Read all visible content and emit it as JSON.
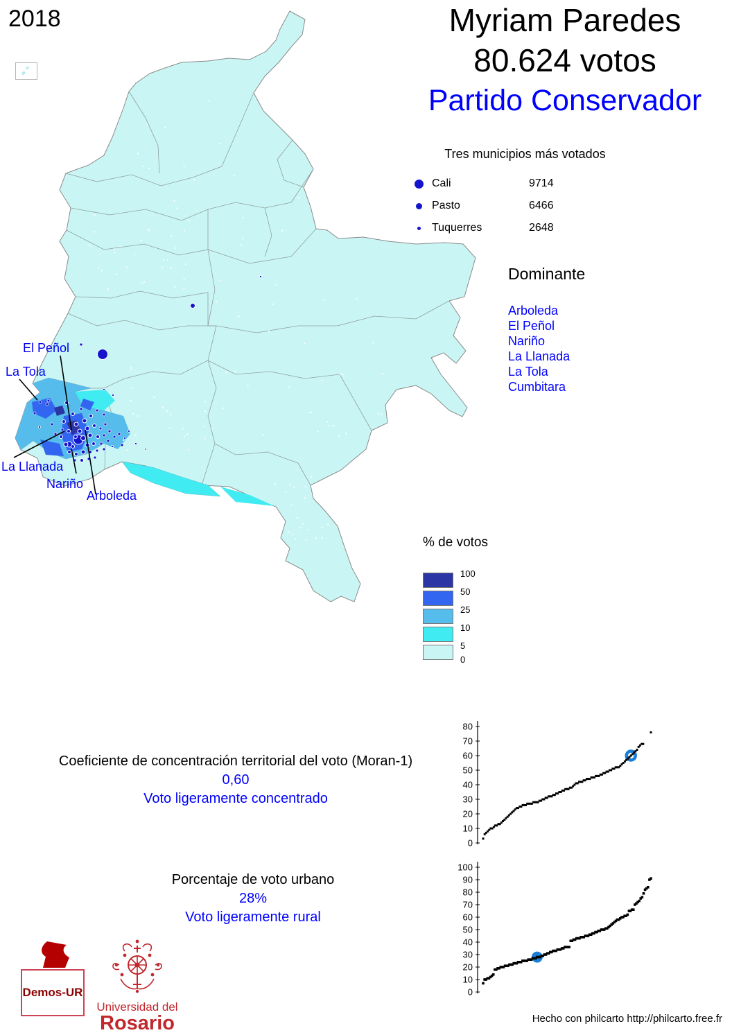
{
  "year": "2018",
  "header": {
    "name": "Myriam Paredes",
    "votes": "80.624 votos",
    "party": "Partido Conservador"
  },
  "colors": {
    "party_text_blue": "#0000ff",
    "dot_navy": "#1414cc",
    "highlight_blue": "#1b7fd6",
    "map_base": "#c9f6f4",
    "map_border": "#8a8a8a",
    "class_colors": [
      "#2b35a4",
      "#3366f0",
      "#56bcec",
      "#40ecf2",
      "#c9f6f4"
    ],
    "logo_red": "#c1272d"
  },
  "top_municipalities": {
    "title": "Tres municipios más votados",
    "rows": [
      {
        "name": "Cali",
        "value": "9714"
      },
      {
        "name": "Pasto",
        "value": "6466"
      },
      {
        "name": "Tuquerres",
        "value": "2648"
      }
    ]
  },
  "dominante": {
    "title": "Dominante",
    "items": [
      "Arboleda",
      "El Peñol",
      "Nariño",
      "La Llanada",
      "La Tola",
      "Cumbitara"
    ]
  },
  "map": {
    "callouts": [
      {
        "text": "El Peñol"
      },
      {
        "text": "La Tola"
      },
      {
        "text": "La Llanada"
      },
      {
        "text": "Nariño"
      },
      {
        "text": "Arboleda"
      }
    ]
  },
  "votes_legend": {
    "title": "% de votos",
    "breaks": [
      "100",
      "50",
      "25",
      "10",
      "5",
      "0"
    ]
  },
  "moran": {
    "title": "Coeficiente de concentración territorial del voto (Moran-1)",
    "value": "0,60",
    "label": "Voto ligeramente concentrado"
  },
  "urban": {
    "title": "Porcentaje de voto urbano",
    "value": "28%",
    "label": "Voto ligeramente rural"
  },
  "logos": {
    "demos": "Demos-UR",
    "university_line1": "Universidad del",
    "university_line2": "Rosario"
  },
  "credit": "Hecho con philcarto http://philcarto.free.fr",
  "chart_data": [
    {
      "type": "scatter",
      "title": "",
      "xlabel": "",
      "ylabel": "",
      "ylim": [
        0,
        80
      ],
      "ytick": 10,
      "legend_position": "none",
      "grid": false,
      "highlight_value": 60,
      "highlight_style": "ring",
      "gap_before_last": true,
      "values": [
        3,
        6,
        7,
        8,
        9,
        10,
        10,
        11,
        12,
        12,
        13,
        13,
        14,
        15,
        16,
        17,
        18,
        19,
        20,
        21,
        22,
        23,
        24,
        24,
        25,
        25,
        26,
        26,
        26,
        27,
        27,
        27,
        27,
        28,
        28,
        28,
        28,
        29,
        29,
        30,
        30,
        31,
        31,
        32,
        32,
        32,
        33,
        33,
        34,
        34,
        35,
        35,
        36,
        36,
        37,
        37,
        37,
        38,
        38,
        39,
        40,
        41,
        41,
        42,
        42,
        42,
        43,
        43,
        44,
        44,
        44,
        45,
        45,
        45,
        46,
        46,
        46,
        47,
        47,
        48,
        48,
        49,
        49,
        50,
        50,
        51,
        51,
        52,
        52,
        52,
        53,
        54,
        55,
        56,
        57,
        58,
        59,
        60,
        61,
        62,
        63,
        64,
        66,
        67,
        68,
        68,
        76
      ]
    },
    {
      "type": "scatter",
      "title": "",
      "xlabel": "",
      "ylabel": "",
      "ylim": [
        0,
        100
      ],
      "ytick": 10,
      "legend_position": "none",
      "grid": false,
      "highlight_value": 28,
      "highlight_style": "solid",
      "gap_before_last": false,
      "values": [
        7,
        10,
        10,
        11,
        11,
        12,
        13,
        14,
        18,
        18,
        19,
        19,
        20,
        20,
        20,
        21,
        21,
        21,
        22,
        22,
        22,
        23,
        23,
        23,
        24,
        24,
        24,
        25,
        25,
        25,
        25,
        26,
        26,
        26,
        27,
        27,
        27,
        28,
        28,
        28,
        29,
        29,
        30,
        30,
        31,
        31,
        32,
        32,
        33,
        33,
        33,
        34,
        34,
        34,
        35,
        35,
        36,
        36,
        36,
        36,
        41,
        41,
        42,
        42,
        43,
        43,
        43,
        44,
        44,
        44,
        45,
        45,
        45,
        46,
        46,
        47,
        47,
        48,
        48,
        49,
        49,
        50,
        50,
        50,
        51,
        51,
        52,
        53,
        54,
        55,
        56,
        57,
        58,
        58,
        59,
        60,
        60,
        61,
        61,
        62,
        65,
        65,
        66,
        66,
        70,
        71,
        72,
        73,
        75,
        76,
        79,
        82,
        83,
        84,
        90,
        91
      ]
    }
  ]
}
